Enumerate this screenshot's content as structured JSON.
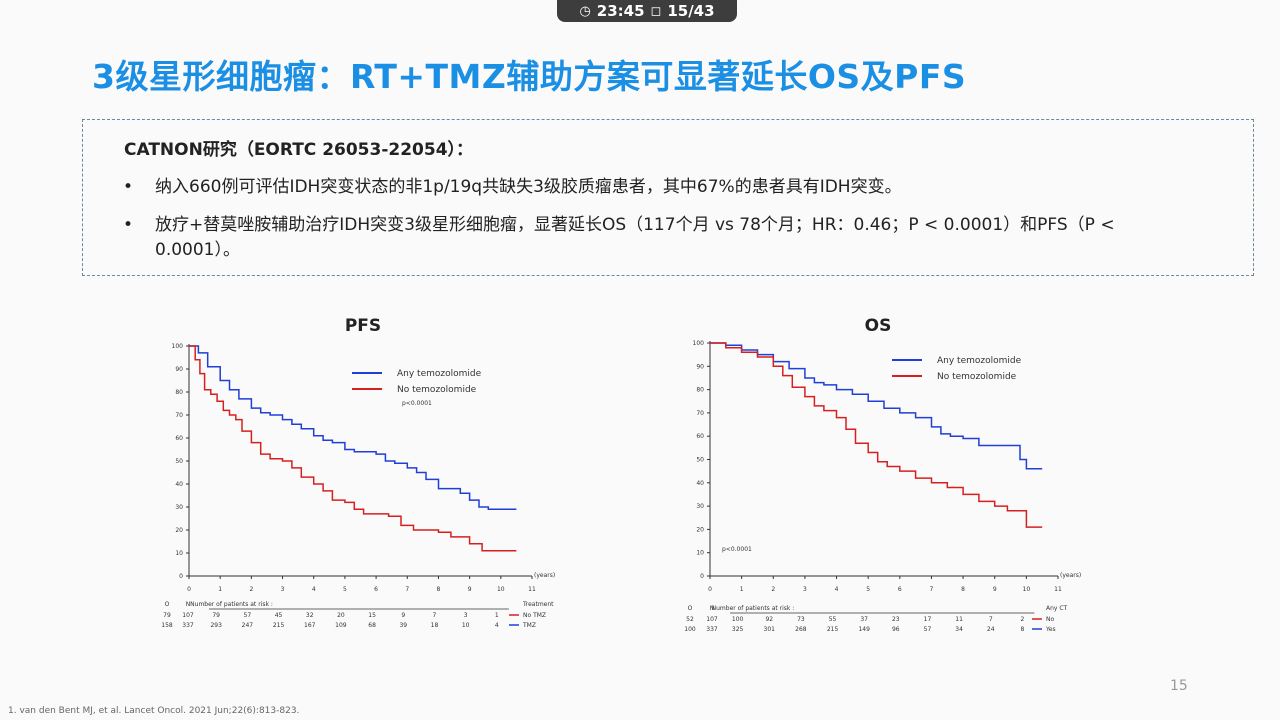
{
  "status_bar": {
    "time": "23:45",
    "page": "15/43"
  },
  "slide": {
    "title": "3级星形细胞瘤：RT+TMZ辅助方案可显著延长OS及PFS",
    "study_title": "CATNON研究（EORTC 26053-22054）：",
    "bullets": [
      "纳入660例可评估IDH突变状态的非1p/19q共缺失3级胶质瘤患者，其中67%的患者具有IDH突变。",
      "放疗+替莫唑胺辅助治疗IDH突变3级星形细胞瘤，显著延长OS（117个月 vs 78个月；HR：0.46；P < 0.0001）和PFS（P < 0.0001）。"
    ],
    "bullet_symbol": "•",
    "page_number": "15",
    "footnote": "1. van den Bent MJ, et al. Lancet Oncol. 2021 Jun;22(6):813-823."
  },
  "chart_data": [
    {
      "type": "line",
      "title": "PFS",
      "x_unit": "(years)",
      "xlim": [
        0,
        11
      ],
      "ylim": [
        0,
        100
      ],
      "x_ticks": [
        "0",
        "1",
        "2",
        "3",
        "4",
        "5",
        "6",
        "7",
        "8",
        "9",
        "10",
        "11"
      ],
      "y_ticks": [
        "0",
        "10",
        "20",
        "30",
        "40",
        "50",
        "60",
        "70",
        "80",
        "90",
        "100"
      ],
      "annotation": "p<0.0001",
      "legend": {
        "placement": "top-right"
      },
      "series": [
        {
          "name": "Any temozolomide",
          "color": "#1f3fd6",
          "x": [
            0,
            0.3,
            0.6,
            1,
            1.3,
            1.6,
            2,
            2.3,
            2.6,
            3,
            3.3,
            3.6,
            4,
            4.3,
            4.6,
            5,
            5.3,
            5.6,
            6,
            6.3,
            6.6,
            7,
            7.3,
            7.6,
            8,
            8.4,
            8.7,
            9,
            9.3,
            9.6,
            10,
            10.5
          ],
          "y": [
            100,
            97,
            91,
            85,
            81,
            77,
            73,
            71,
            70,
            68,
            66,
            64,
            61,
            59,
            58,
            55,
            54,
            54,
            53,
            50,
            49,
            47,
            45,
            42,
            38,
            38,
            36,
            33,
            30,
            29,
            29,
            29
          ]
        },
        {
          "name": "No temozolomide",
          "color": "#d62020",
          "x": [
            0,
            0.2,
            0.35,
            0.5,
            0.7,
            0.9,
            1.1,
            1.3,
            1.5,
            1.7,
            2,
            2.3,
            2.6,
            3,
            3.3,
            3.6,
            4,
            4.3,
            4.6,
            5,
            5.3,
            5.6,
            6,
            6.4,
            6.8,
            7.2,
            7.6,
            8,
            8.4,
            8.8,
            9,
            9.4,
            10,
            10.5
          ],
          "y": [
            100,
            94,
            88,
            81,
            79,
            76,
            72,
            70,
            68,
            63,
            58,
            53,
            51,
            50,
            47,
            43,
            40,
            37,
            33,
            32,
            29,
            27,
            27,
            26,
            22,
            20,
            20,
            19,
            17,
            17,
            14,
            11,
            11,
            11
          ]
        }
      ],
      "risk_table": {
        "header": "Number of patients at risk :",
        "col_labels": [
          "O",
          "N"
        ],
        "group_header": "Treatment",
        "rows": [
          {
            "o": "79",
            "n": "107",
            "counts": [
              "79",
              "57",
              "45",
              "32",
              "20",
              "15",
              "9",
              "7",
              "3",
              "1"
            ],
            "label": "No TMZ",
            "color": "#d62020"
          },
          {
            "o": "158",
            "n": "337",
            "counts": [
              "293",
              "247",
              "215",
              "167",
              "109",
              "68",
              "39",
              "18",
              "10",
              "4"
            ],
            "label": "TMZ",
            "color": "#1f3fd6"
          }
        ]
      }
    },
    {
      "type": "line",
      "title": "OS",
      "x_unit": "(years)",
      "xlim": [
        0,
        11
      ],
      "ylim": [
        0,
        100
      ],
      "x_ticks": [
        "0",
        "1",
        "2",
        "3",
        "4",
        "5",
        "6",
        "7",
        "8",
        "9",
        "10",
        "11"
      ],
      "y_ticks": [
        "0",
        "10",
        "20",
        "30",
        "40",
        "50",
        "60",
        "70",
        "80",
        "90",
        "100"
      ],
      "annotation": "p<0.0001",
      "legend": {
        "placement": "top-right"
      },
      "series": [
        {
          "name": "Any temozolomide",
          "color": "#1f3fd6",
          "x": [
            0,
            0.5,
            1,
            1.5,
            2,
            2.5,
            3,
            3.3,
            3.6,
            4,
            4.5,
            5,
            5.5,
            6,
            6.5,
            7,
            7.3,
            7.6,
            8,
            8.5,
            9,
            9.5,
            9.8,
            10,
            10.5
          ],
          "y": [
            100,
            99,
            97,
            95,
            92,
            89,
            85,
            83,
            82,
            80,
            78,
            75,
            72,
            70,
            68,
            64,
            61,
            60,
            59,
            56,
            56,
            56,
            50,
            46,
            46
          ]
        },
        {
          "name": "No temozolomide",
          "color": "#d62020",
          "x": [
            0,
            0.5,
            1,
            1.5,
            2,
            2.3,
            2.6,
            3,
            3.3,
            3.6,
            4,
            4.3,
            4.6,
            5,
            5.3,
            5.6,
            6,
            6.5,
            7,
            7.5,
            8,
            8.5,
            9,
            9.4,
            10,
            10.5
          ],
          "y": [
            100,
            98,
            96,
            94,
            90,
            86,
            81,
            77,
            73,
            71,
            68,
            63,
            57,
            53,
            49,
            47,
            45,
            42,
            40,
            38,
            35,
            32,
            30,
            28,
            21,
            21
          ]
        }
      ],
      "risk_table": {
        "header": "Number of patients at risk :",
        "col_labels": [
          "O",
          "N"
        ],
        "group_header": "Any CT",
        "rows": [
          {
            "o": "52",
            "n": "107",
            "counts": [
              "100",
              "92",
              "73",
              "55",
              "37",
              "23",
              "17",
              "11",
              "7",
              "2"
            ],
            "label": "No",
            "color": "#d62020"
          },
          {
            "o": "100",
            "n": "337",
            "counts": [
              "325",
              "301",
              "268",
              "215",
              "149",
              "96",
              "57",
              "34",
              "24",
              "8"
            ],
            "label": "Yes",
            "color": "#1f3fd6"
          }
        ]
      }
    }
  ]
}
